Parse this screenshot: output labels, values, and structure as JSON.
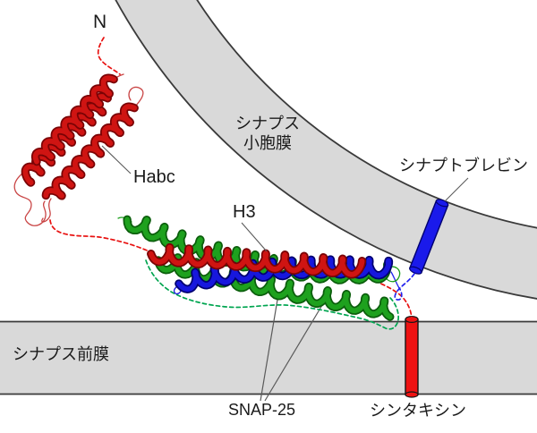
{
  "figure": {
    "title_context": "SNARE complex membrane fusion diagram",
    "labels": {
      "n_terminus": "N",
      "vesicle_membrane_line1": "シナプス",
      "vesicle_membrane_line2": "小胞膜",
      "synaptobrevin": "シナプトブレビン",
      "habc_domain": "Habc",
      "h3_domain": "H3",
      "presynaptic_membrane": "シナプス前膜",
      "snap25": "SNAP-25",
      "syntaxin": "シンタキシン"
    },
    "colors": {
      "background": "#ffffff",
      "membrane_fill": "#d9d9d9",
      "membrane_edge": "#3a3a3a",
      "syntaxin_red": "#cf1412",
      "syntaxin_red_dark": "#7a0305",
      "snap25_green": "#1ea11e",
      "snap25_green_dark": "#0b5e0c",
      "synaptobrevin_blue": "#1717dd",
      "synaptobrevin_blue_dark": "#000070",
      "dash_red": "#e81211",
      "dash_green": "#00a550",
      "dash_blue": "#2222ee",
      "tm_red_fill": "#ee1212",
      "tm_blue_fill": "#1a1aeb",
      "leader_line": "#5a5a5a",
      "text": "#1a1a1a"
    }
  }
}
